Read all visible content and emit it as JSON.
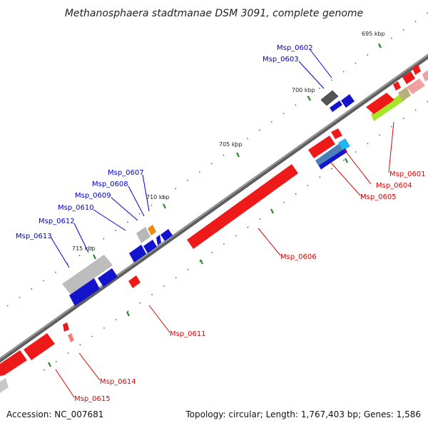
{
  "title": "Methanosphaera stadtmanae DSM 3091, complete genome",
  "footer": {
    "accession": "Accession: NC_007681",
    "summary": "Topology: circular; Length: 1,767,403 bp; Genes: 1,586"
  },
  "scale": [
    {
      "label": "695 kbp"
    },
    {
      "label": "700 kbp"
    },
    {
      "label": "705 kbp"
    },
    {
      "label": "710 kbp"
    },
    {
      "label": "715 kbp"
    }
  ],
  "colors": {
    "forward_label": "#0000cc",
    "reverse_label": "#dd0000",
    "backbone": "#777777",
    "tick": "#2a8a2a"
  },
  "labels": {
    "forward": [
      {
        "id": "Msp_0602"
      },
      {
        "id": "Msp_0603"
      },
      {
        "id": "Msp_0607"
      },
      {
        "id": "Msp_0608"
      },
      {
        "id": "Msp_0609"
      },
      {
        "id": "Msp_0610"
      },
      {
        "id": "Msp_0612"
      },
      {
        "id": "Msp_0613"
      }
    ],
    "reverse": [
      {
        "id": "Msp_0601"
      },
      {
        "id": "Msp_0604"
      },
      {
        "id": "Msp_0605"
      },
      {
        "id": "Msp_0606"
      },
      {
        "id": "Msp_0611"
      },
      {
        "id": "Msp_0614"
      },
      {
        "id": "Msp_0615"
      }
    ]
  }
}
